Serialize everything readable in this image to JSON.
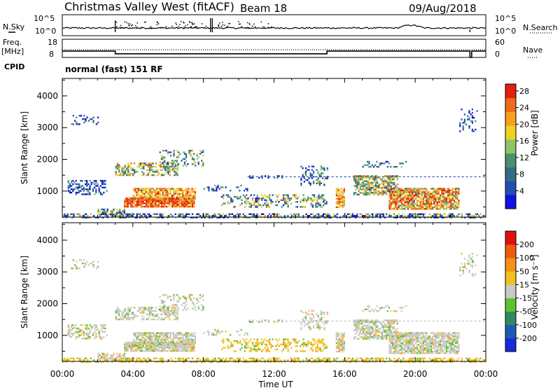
{
  "header": {
    "title": "Christmas Valley West (fitACF)",
    "beam": "Beam 18",
    "date": "09/Aug/2018"
  },
  "side_labels": {
    "nsky": "N.Sky",
    "freq": "Freq.",
    "freq_unit": "[MHz]",
    "cpid": "CPID",
    "nsearch": "N.Search",
    "nave": "Nave"
  },
  "mode_text": "normal (fast) 151 RF",
  "xaxis": {
    "label": "Time UT",
    "ticks": [
      "00:00",
      "04:00",
      "08:00",
      "12:00",
      "16:00",
      "20:00",
      "00:00"
    ]
  },
  "colors": {
    "power": [
      "#1010e0",
      "#1f4fb0",
      "#2f6e86",
      "#4a8f6e",
      "#8fc46a",
      "#f0d020",
      "#f5a020",
      "#ef6a1a",
      "#e02010"
    ],
    "velocity": [
      "#1a2ad8",
      "#1f5ab0",
      "#2f8a62",
      "#60c030",
      "#c8c8c8",
      "#f0c020",
      "#f59018",
      "#ef5a10",
      "#e01010"
    ]
  },
  "chart_data": [
    {
      "type": "line",
      "name": "noise-panel",
      "left_label": "N.Sky",
      "right_label": "N.Search",
      "yticks_left": [
        "10^5",
        "10^0"
      ],
      "yticks_right": [
        "10^5",
        "10^0"
      ]
    },
    {
      "type": "line",
      "name": "frequency-panel",
      "left_label": "Freq. [MHz]",
      "right_label": "Nave",
      "yticks_left": [
        "18",
        "8"
      ],
      "yticks_right": [
        "60",
        "0"
      ],
      "freq_steps": [
        [
          0,
          11.5
        ],
        [
          3,
          10
        ],
        [
          15,
          11.5
        ],
        [
          23.1,
          8
        ],
        [
          23.2,
          11.5
        ]
      ]
    },
    {
      "type": "heatmap",
      "name": "power-panel",
      "ylabel": "Slant Range [km]",
      "yticks": [
        "1000",
        "2000",
        "3000",
        "4000"
      ],
      "xlim": [
        0,
        24
      ],
      "ylim": [
        180,
        4550
      ],
      "colorbar_label": "Power [dB]",
      "colorbar_ticks": [
        "4",
        "8",
        "12",
        "16",
        "20",
        "24",
        "28"
      ],
      "colorbar_range": [
        0,
        30
      ]
    },
    {
      "type": "heatmap",
      "name": "velocity-panel",
      "ylabel": "Slant Range [km]",
      "yticks": [
        "1000",
        "2000",
        "3000",
        "4000"
      ],
      "xlim": [
        0,
        24
      ],
      "ylim": [
        180,
        4550
      ],
      "colorbar_label": "Velocity [m s⁻¹]",
      "colorbar_ticks": [
        "200",
        "100",
        "50",
        "15",
        "-15",
        "-50",
        "-100",
        "-200"
      ]
    }
  ]
}
